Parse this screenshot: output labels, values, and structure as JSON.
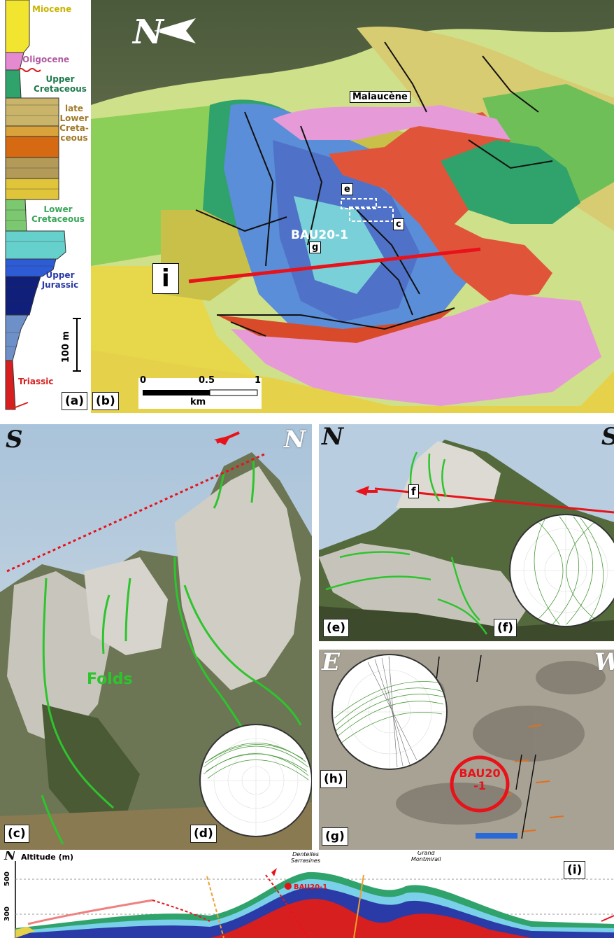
{
  "panel_labels": {
    "a": "(a)",
    "b": "(b)",
    "c": "(c)",
    "d": "(d)",
    "e": "(e)",
    "f": "(f)",
    "g": "(g)",
    "h": "(h)",
    "i": "(i)"
  },
  "stratigraphy": {
    "units": [
      "Miocene",
      "Oligocene",
      "Upper Cretaceous",
      "late Lower Creta-ceous",
      "Lower Cretaceous",
      "Upper Jurassic",
      "Triassic"
    ],
    "scale_label": "100 m",
    "colors": {
      "miocene": "#f2e530",
      "oligocene": "#e58ad0",
      "upper_cretaceous": "#2fa36b",
      "lower_cretaceous": "#9fcf68",
      "upper_jurassic": "#1a2f9c",
      "triassic": "#d81f1f"
    }
  },
  "map": {
    "north_label": "N",
    "town": "Malaucène",
    "sample": "BAU20-1",
    "photo_markers": [
      "e",
      "c",
      "g"
    ],
    "section_marker": "i",
    "scale": {
      "ticks": [
        "0",
        "0.5",
        "1"
      ],
      "unit": "km"
    }
  },
  "photo_c": {
    "left_dir": "S",
    "right_dir": "N",
    "folds_label": "Folds"
  },
  "photo_e": {
    "left_dir": "N",
    "right_dir": "S",
    "marker": "f"
  },
  "photo_g": {
    "left_dir": "E",
    "right_dir": "W",
    "sample": "BAU20\n-1"
  },
  "section": {
    "north_label": "N",
    "axis_label": "Altitude (m)",
    "ticks": [
      "500",
      "300"
    ],
    "peaks": [
      "Dentelles Sarrasines",
      "Grand Montmirail"
    ],
    "sample": "BAU20-1"
  }
}
